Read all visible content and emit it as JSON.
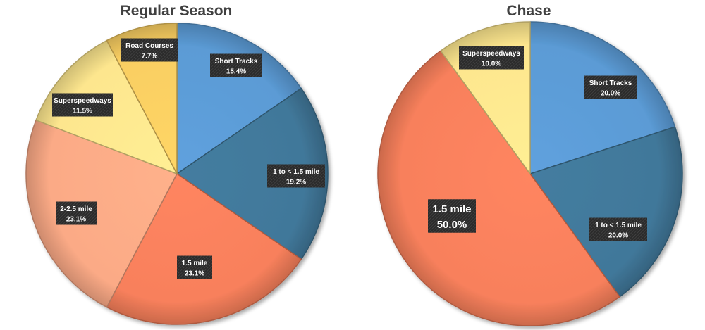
{
  "chart_data": [
    {
      "type": "pie",
      "title": "Regular Season",
      "slices": [
        {
          "label": "Short Tracks",
          "value": 15.4,
          "display": "15.4%",
          "color": "#5B9BD5"
        },
        {
          "label": "1 to < 1.5 mile",
          "value": 19.2,
          "display": "19.2%",
          "color": "#41789A"
        },
        {
          "label": "1.5 mile",
          "value": 23.1,
          "display": "23.1%",
          "color": "#F8805C"
        },
        {
          "label": "2-2.5 mile",
          "value": 23.1,
          "display": "23.1%",
          "color": "#FBAA86"
        },
        {
          "label": "Superspeedways",
          "value": 11.5,
          "display": "11.5%",
          "color": "#FDE68E"
        },
        {
          "label": "Road Courses",
          "value": 7.7,
          "display": "7.7%",
          "color": "#F9CE62"
        }
      ]
    },
    {
      "type": "pie",
      "title": "Chase",
      "slices": [
        {
          "label": "Short Tracks",
          "value": 20.0,
          "display": "20.0%",
          "color": "#5B9BD5"
        },
        {
          "label": "1 to < 1.5 mile",
          "value": 20.0,
          "display": "20.0%",
          "color": "#41789A"
        },
        {
          "label": "1.5 mile",
          "value": 50.0,
          "display": "50.0%",
          "color": "#F8805C"
        },
        {
          "label": "Superspeedways",
          "value": 10.0,
          "display": "10.0%",
          "color": "#FDE68E"
        }
      ]
    }
  ]
}
